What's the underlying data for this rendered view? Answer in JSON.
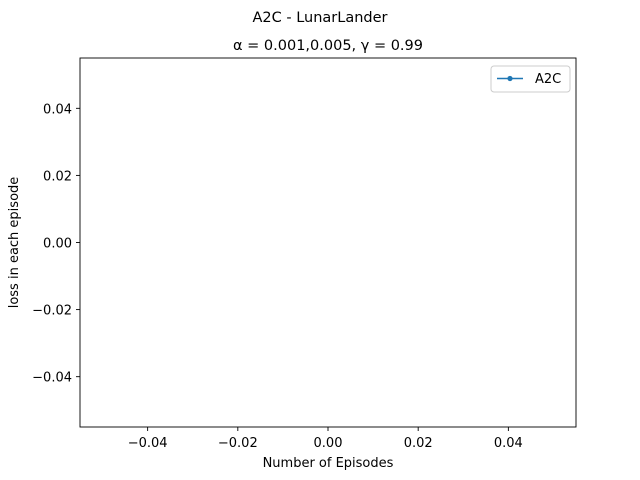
{
  "chart_data": {
    "type": "line",
    "title": "A2C - LunarLander",
    "subtitle": "α = 0.001,0.005, γ = 0.99",
    "xlabel": "Number of Episodes",
    "ylabel": "loss in each episode",
    "xlim": [
      -0.055,
      0.055
    ],
    "ylim": [
      -0.055,
      0.055
    ],
    "xticks": [
      -0.04,
      -0.02,
      0.0,
      0.02,
      0.04
    ],
    "yticks": [
      -0.04,
      -0.02,
      0.0,
      0.02,
      0.04
    ],
    "xtick_labels": [
      "−0.04",
      "−0.02",
      "0.00",
      "0.02",
      "0.04"
    ],
    "ytick_labels": [
      "−0.04",
      "−0.02",
      "0.00",
      "0.02",
      "0.04"
    ],
    "grid": false,
    "legend_position": "top-right",
    "series": [
      {
        "name": "A2C",
        "color": "#1f77b4",
        "marker": "circle",
        "x": [],
        "y": []
      }
    ]
  }
}
